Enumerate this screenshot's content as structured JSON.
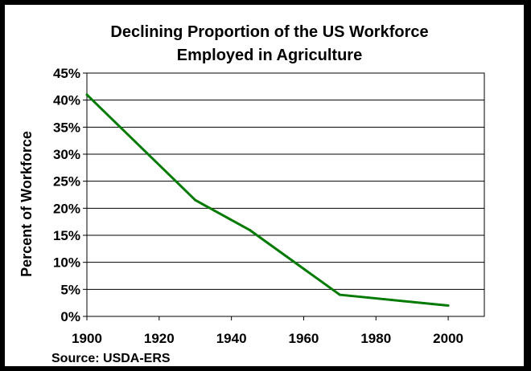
{
  "chart_data": {
    "type": "line",
    "title_lines": [
      "Declining Proportion of the US Workforce",
      "Employed in Agriculture"
    ],
    "xlabel": "",
    "ylabel": "Percent of Workforce",
    "source": "Source: USDA-ERS",
    "xlim": [
      1900,
      2010
    ],
    "ylim": [
      0,
      45
    ],
    "x_ticks": [
      1900,
      1920,
      1940,
      1960,
      1980,
      2000
    ],
    "y_ticks": [
      0,
      5,
      10,
      15,
      20,
      25,
      30,
      35,
      40,
      45
    ],
    "y_tick_labels": [
      "0%",
      "5%",
      "10%",
      "15%",
      "20%",
      "25%",
      "30%",
      "35%",
      "40%",
      "45%"
    ],
    "grid": true,
    "series": [
      {
        "color": "#007a00",
        "x": [
          1900,
          1930,
          1945,
          1970,
          2000
        ],
        "y": [
          41,
          21.5,
          16,
          4,
          2
        ]
      }
    ]
  }
}
